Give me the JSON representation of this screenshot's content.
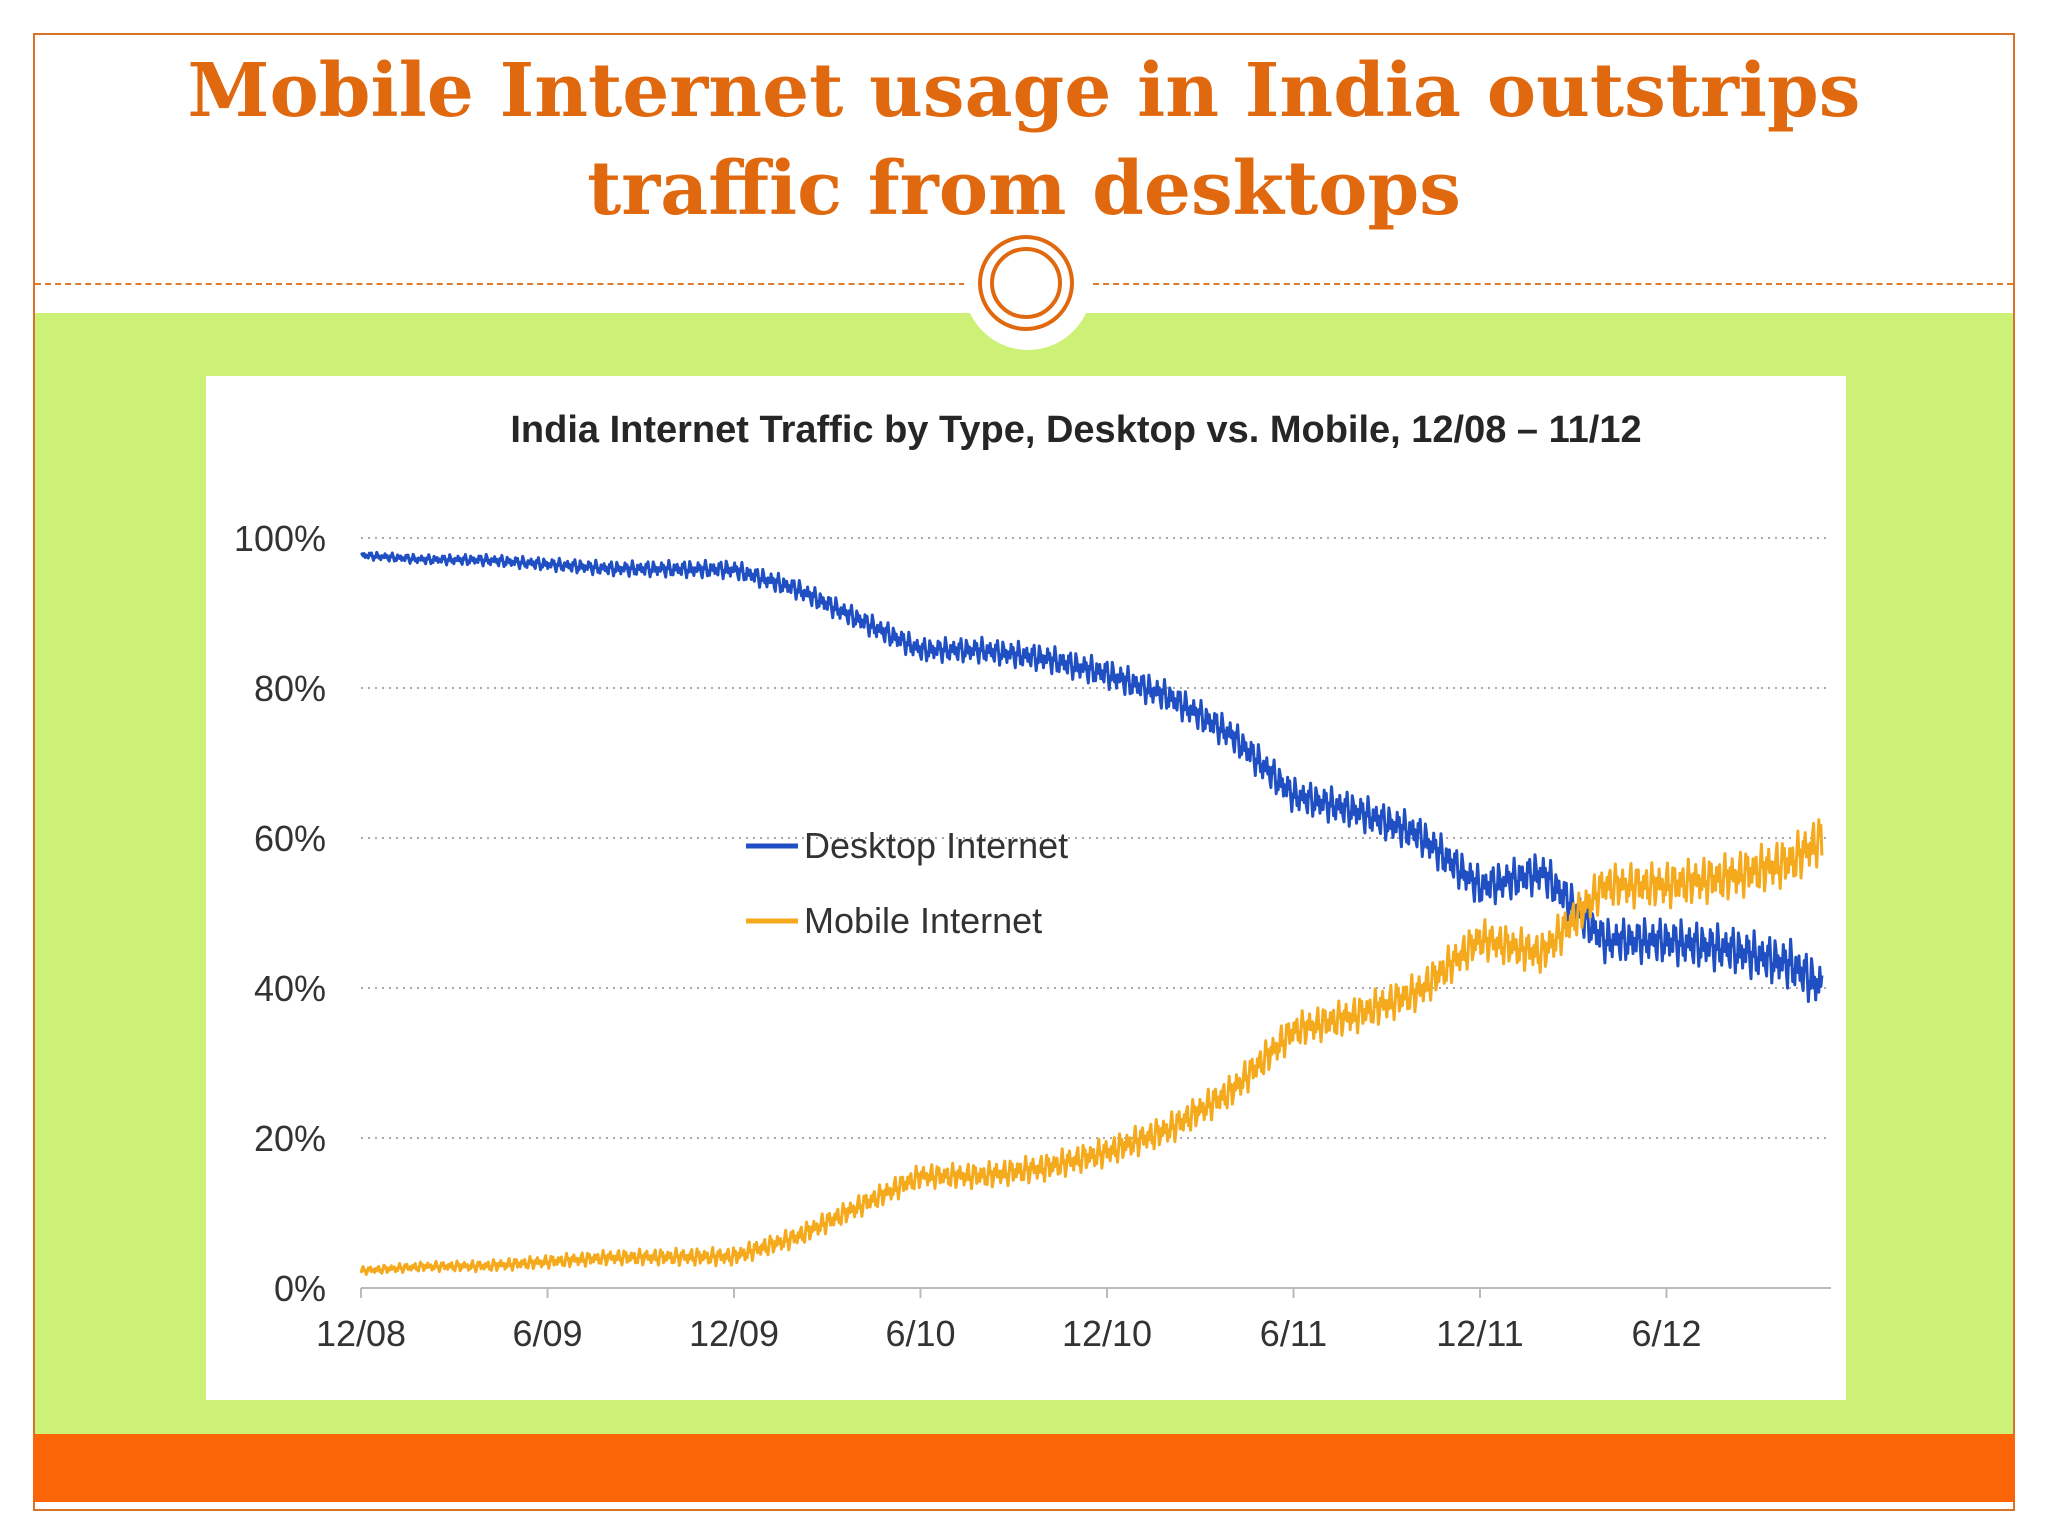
{
  "slide": {
    "title_line1": "Mobile Internet usage in India outstrips",
    "title_line2": "traffic from desktops",
    "colors": {
      "title": "#e0680f",
      "panel": "#cdf177",
      "bar": "#fb6508",
      "rule": "#e07b2e"
    }
  },
  "chart_data": {
    "type": "line",
    "title": "India Internet Traffic by Type, Desktop vs. Mobile, 12/08 – 11/12",
    "xlabel": "",
    "ylabel": "",
    "x_ticks": [
      "12/08",
      "6/09",
      "12/09",
      "6/10",
      "12/10",
      "6/11",
      "12/11",
      "6/12"
    ],
    "y_ticks": [
      "0%",
      "20%",
      "40%",
      "60%",
      "80%",
      "100%"
    ],
    "ylim": [
      0,
      100
    ],
    "xlim": [
      "2008-12",
      "2012-11"
    ],
    "grid": "horizontal dotted",
    "legend_position": "center",
    "series": [
      {
        "name": "Desktop Internet",
        "color": "#1f4fc2",
        "x": [
          "2008-12",
          "2009-02",
          "2009-04",
          "2009-06",
          "2009-08",
          "2009-10",
          "2009-12",
          "2010-02",
          "2010-04",
          "2010-06",
          "2010-08",
          "2010-10",
          "2010-12",
          "2011-02",
          "2011-04",
          "2011-06",
          "2011-08",
          "2011-10",
          "2011-12",
          "2012-02",
          "2012-04",
          "2012-06",
          "2012-08",
          "2012-10",
          "2012-11"
        ],
        "values": [
          98,
          97.5,
          97.5,
          97,
          96.5,
          96.5,
          96.5,
          94,
          90,
          86,
          86,
          85,
          83,
          80,
          75,
          67,
          65,
          62,
          55,
          57,
          48,
          48,
          47,
          45,
          42
        ]
      },
      {
        "name": "Mobile Internet",
        "color": "#f5aa1e",
        "x": [
          "2008-12",
          "2009-02",
          "2009-04",
          "2009-06",
          "2009-08",
          "2009-10",
          "2009-12",
          "2010-02",
          "2010-04",
          "2010-06",
          "2010-08",
          "2010-10",
          "2010-12",
          "2011-02",
          "2011-04",
          "2011-06",
          "2011-08",
          "2011-10",
          "2011-12",
          "2012-02",
          "2012-04",
          "2012-06",
          "2012-08",
          "2012-10",
          "2012-11"
        ],
        "values": [
          2,
          2.5,
          2.5,
          3,
          3.5,
          3.5,
          3.5,
          6,
          10,
          14,
          14,
          15,
          17,
          20,
          25,
          33,
          35,
          38,
          45,
          43,
          52,
          52,
          53,
          55,
          58
        ]
      }
    ]
  }
}
